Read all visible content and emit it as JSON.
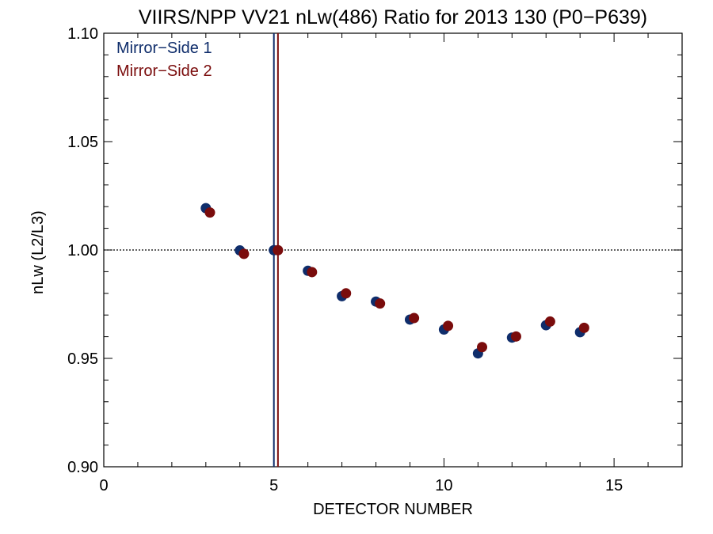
{
  "chart_data": {
    "type": "scatter",
    "title": "VIIRS/NPP VV21 nLw(486) Ratio for 2013 130 (P0−P639)",
    "xlabel": "DETECTOR NUMBER",
    "ylabel": "nLw (L2/L3)",
    "xlim": [
      0,
      17
    ],
    "ylim": [
      0.9,
      1.1
    ],
    "xticks": [
      0,
      5,
      10,
      15
    ],
    "xtick_labels": [
      "0",
      "5",
      "10",
      "15"
    ],
    "yticks": [
      0.9,
      0.95,
      1.0,
      1.05,
      1.1
    ],
    "ytick_labels": [
      "0.90",
      "0.95",
      "1.00",
      "1.05",
      "1.10"
    ],
    "reference_line_y": 1.0,
    "legend_position": "top-left",
    "series": [
      {
        "name": "Mirror−Side 1",
        "color": "#0f2d6b",
        "marker_line_x": 5.0,
        "x": [
          3,
          4,
          5,
          6,
          7,
          8,
          9,
          10,
          11,
          12,
          13,
          14
        ],
        "y": [
          1.0193,
          0.9998,
          0.9999,
          0.9904,
          0.9787,
          0.9762,
          0.9679,
          0.9633,
          0.9523,
          0.9596,
          0.9653,
          0.9621
        ]
      },
      {
        "name": "Mirror−Side 2",
        "color": "#7a0c0c",
        "marker_line_x": 5.12,
        "x": [
          3.12,
          4.12,
          5.12,
          6.12,
          7.12,
          8.12,
          9.12,
          10.12,
          11.12,
          12.12,
          13.12,
          14.12
        ],
        "y": [
          1.0173,
          0.9982,
          0.9999,
          0.9898,
          0.98,
          0.9753,
          0.9686,
          0.965,
          0.9552,
          0.9601,
          0.967,
          0.9641
        ]
      }
    ]
  }
}
